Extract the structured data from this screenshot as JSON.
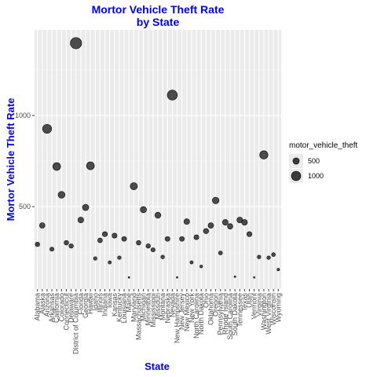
{
  "chart_data": {
    "type": "scatter",
    "title": "Mortor Vehicle Theft Rate\nby State",
    "x_label": "State",
    "y_label": "Mortor Vehicle Theft Rate",
    "categories": [
      "Alabama",
      "Alaska",
      "Arizona",
      "Arkansas",
      "California",
      "Colorado",
      "Connecticut",
      "Delaware",
      "District of Columbia",
      "Florida",
      "Georgia",
      "Hawaii",
      "Idaho",
      "Illinois",
      "Indiana",
      "Iowa",
      "Kansas",
      "Kentucky",
      "Louisiana",
      "Maine",
      "Maryland",
      "Massachusetts",
      "Michigan",
      "Minnesota",
      "Mississippi",
      "Missouri",
      "Montana",
      "Nebraska",
      "Nevada",
      "New Hampshire",
      "New Jersey",
      "New Mexico",
      "New York",
      "North Carolina",
      "North Dakota",
      "Ohio",
      "Oklahoma",
      "Oregon",
      "Pennsylvania",
      "Rhode Island",
      "South Carolina",
      "South Dakota",
      "Tennessee",
      "Texas",
      "Utah",
      "Vermont",
      "Virginia",
      "Washington",
      "West Virginia",
      "Wisconsin",
      "Wyoming"
    ],
    "values": [
      293,
      397,
      927,
      267,
      720,
      565,
      302,
      284,
      1397,
      427,
      496,
      724,
      216,
      315,
      349,
      194,
      341,
      220,
      323,
      112,
      612,
      302,
      483,
      284,
      263,
      453,
      224,
      323,
      1112,
      112,
      323,
      418,
      194,
      332,
      172,
      366,
      397,
      534,
      246,
      414,
      392,
      116,
      427,
      414,
      349,
      112,
      224,
      784,
      220,
      237,
      155
    ],
    "color": "#3a3a3a",
    "ylim": [
      48,
      1470
    ],
    "yticks": [
      500,
      1000
    ],
    "grid": true,
    "legend": {
      "title": "motor_vehicle_theft",
      "entries": [
        500,
        1000
      ],
      "position": "right"
    }
  }
}
